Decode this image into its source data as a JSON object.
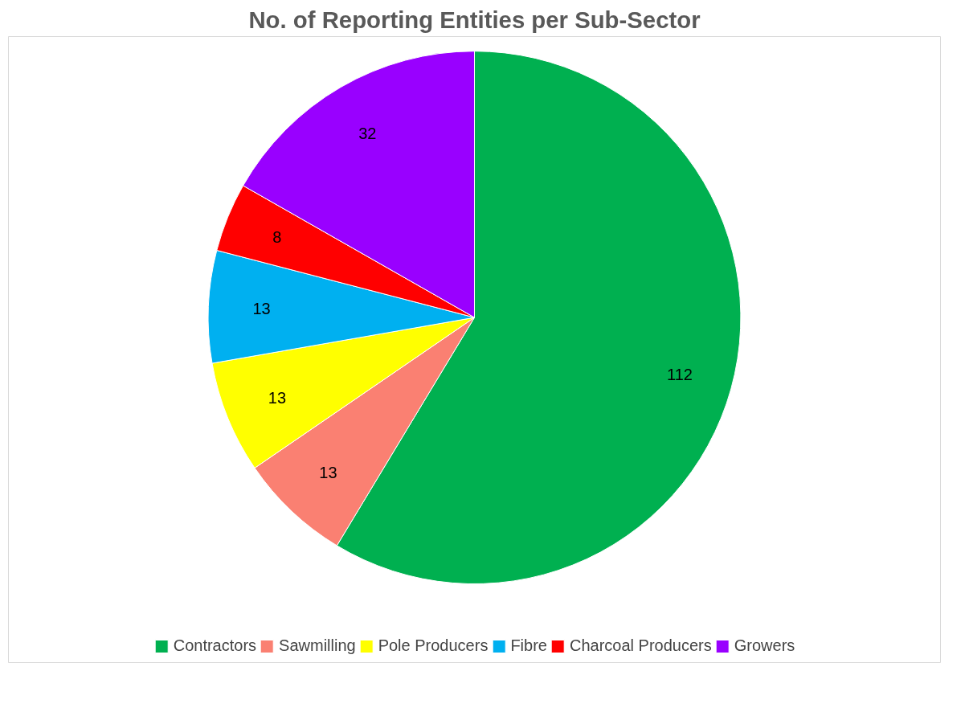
{
  "chart_data": {
    "type": "pie",
    "title": "No. of Reporting Entities per Sub-Sector",
    "categories": [
      "Contractors",
      "Sawmilling",
      "Pole Producers",
      "Fibre",
      "Charcoal Producers",
      "Growers"
    ],
    "values": [
      112,
      13,
      13,
      13,
      8,
      32
    ],
    "colors": [
      "#00b050",
      "#fa8072",
      "#ffff00",
      "#00b0f0",
      "#ff0000",
      "#9900ff"
    ],
    "data_labels": true,
    "legend": "bottom"
  }
}
